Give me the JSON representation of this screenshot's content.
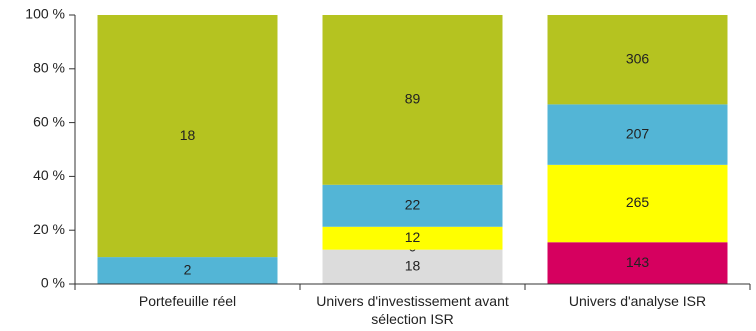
{
  "chart_data": {
    "type": "stacked_percent_bar",
    "categories": [
      "Portefeuille réel",
      "Univers d'investissement avant sélection ISR",
      "Univers d'analyse ISR"
    ],
    "series": [
      {
        "color": "#dcdcdc",
        "values": [
          null,
          18,
          null
        ]
      },
      {
        "color": "#d6005f",
        "values": [
          null,
          0,
          143
        ]
      },
      {
        "color": "#ffff00",
        "values": [
          null,
          12,
          265
        ]
      },
      {
        "color": "#53b5d6",
        "values": [
          2,
          22,
          207
        ]
      },
      {
        "color": "#b5c320",
        "values": [
          18,
          89,
          306
        ]
      }
    ],
    "ylim": [
      0,
      100
    ],
    "yticks": [
      {
        "value": 0,
        "label": "0 %"
      },
      {
        "value": 20,
        "label": "20 %"
      },
      {
        "value": 40,
        "label": "40 %"
      },
      {
        "value": 60,
        "label": "60 %"
      },
      {
        "value": 80,
        "label": "80 %"
      },
      {
        "value": 100,
        "label": "100 %"
      }
    ]
  }
}
